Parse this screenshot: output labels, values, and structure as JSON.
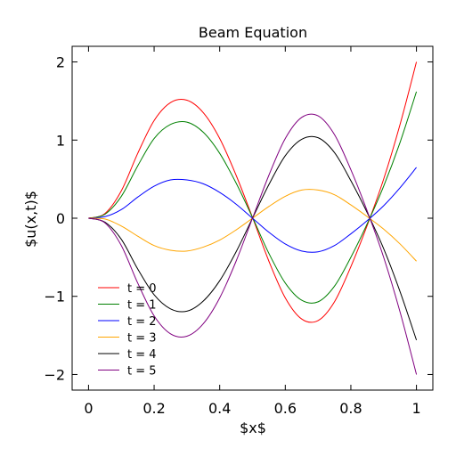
{
  "chart_data": {
    "type": "line",
    "title": "Beam Equation",
    "xlabel": "$x$",
    "ylabel": "$u(x,t)$",
    "xlim": [
      -0.05,
      1.05
    ],
    "ylim": [
      -2.2,
      2.2
    ],
    "grid": false,
    "legend_position": "lower-left",
    "x_ticks": [
      0,
      0.2,
      0.4,
      0.6,
      0.8,
      1
    ],
    "x_tick_labels": [
      "0",
      "0.2",
      "0.4",
      "0.6",
      "0.8",
      "1"
    ],
    "y_ticks": [
      -2,
      -1,
      0,
      1,
      2
    ],
    "y_tick_labels": [
      "−2",
      "−1",
      "0",
      "1",
      "2"
    ],
    "x": [
      0,
      0.05,
      0.1,
      0.15,
      0.2,
      0.25,
      0.3,
      0.35,
      0.4,
      0.45,
      0.5,
      0.55,
      0.6,
      0.65,
      0.7,
      0.75,
      0.8,
      0.85,
      0.9,
      0.95,
      1.0
    ],
    "series": [
      {
        "name": "t = 0",
        "color": "#ff0000",
        "values": [
          0,
          0.06,
          0.35,
          0.83,
          1.25,
          1.48,
          1.51,
          1.35,
          1.02,
          0.55,
          0.01,
          -0.55,
          -1.02,
          -1.29,
          -1.31,
          -1.07,
          -0.62,
          -0.09,
          0.5,
          1.2,
          2.0
        ]
      },
      {
        "name": "t = 1",
        "color": "#008000",
        "values": [
          0,
          0.05,
          0.28,
          0.67,
          1.02,
          1.2,
          1.23,
          1.1,
          0.83,
          0.45,
          0.01,
          -0.45,
          -0.83,
          -1.05,
          -1.07,
          -0.87,
          -0.5,
          -0.07,
          0.41,
          0.97,
          1.62
        ]
      },
      {
        "name": "t = 2",
        "color": "#0000ff",
        "values": [
          0,
          0.02,
          0.11,
          0.27,
          0.41,
          0.49,
          0.49,
          0.44,
          0.33,
          0.18,
          0.0,
          -0.18,
          -0.33,
          -0.42,
          -0.43,
          -0.35,
          -0.2,
          -0.03,
          0.16,
          0.39,
          0.65
        ]
      },
      {
        "name": "t = 3",
        "color": "#ffa500",
        "values": [
          0,
          -0.01,
          -0.1,
          -0.23,
          -0.35,
          -0.41,
          -0.42,
          -0.37,
          -0.28,
          -0.15,
          0.0,
          0.15,
          0.28,
          0.36,
          0.36,
          0.3,
          0.17,
          0.02,
          -0.14,
          -0.33,
          -0.55
        ]
      },
      {
        "name": "t = 4",
        "color": "#000000",
        "values": [
          0,
          -0.05,
          -0.27,
          -0.65,
          -0.98,
          -1.16,
          -1.19,
          -1.06,
          -0.8,
          -0.43,
          0.0,
          0.43,
          0.8,
          1.01,
          1.03,
          0.84,
          0.48,
          0.07,
          -0.39,
          -0.94,
          -1.56
        ]
      },
      {
        "name": "t = 5",
        "color": "#800080",
        "values": [
          0,
          -0.06,
          -0.35,
          -0.83,
          -1.25,
          -1.48,
          -1.51,
          -1.35,
          -1.02,
          -0.55,
          0.0,
          0.55,
          1.02,
          1.29,
          1.31,
          1.07,
          0.62,
          0.09,
          -0.5,
          -1.2,
          -2.0
        ]
      }
    ]
  }
}
